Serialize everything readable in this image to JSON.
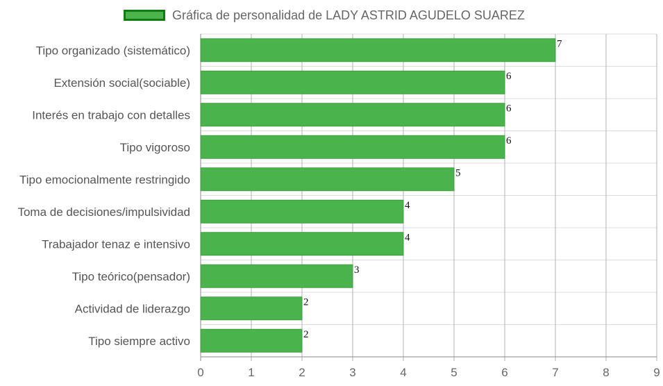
{
  "chart_data": {
    "type": "bar",
    "orientation": "horizontal",
    "legend": {
      "label": "Gráfica de personalidad de LADY ASTRID AGUDELO SUAREZ",
      "position": "top-center"
    },
    "categories": [
      "Tipo organizado (sistemático)",
      "Extensión social(sociable)",
      "Interés en trabajo con detalles",
      "Tipo vigoroso",
      "Tipo emocionalmente restringido",
      "Toma de decisiones/impulsividad",
      "Trabajador tenaz e intensivo",
      "Tipo teórico(pensador)",
      "Actividad de liderazgo",
      "Tipo siempre activo"
    ],
    "values": [
      7,
      6,
      6,
      6,
      5,
      4,
      4,
      3,
      2,
      2
    ],
    "xlim": [
      0,
      9
    ],
    "x_ticks": [
      "0",
      "1",
      "2",
      "3",
      "4",
      "5",
      "6",
      "7",
      "8",
      "9"
    ],
    "grid": true,
    "data_labels": true,
    "colors": {
      "bar": "#4bb34b",
      "legend_border": "#127a12",
      "grid": "#dddddd",
      "axis": "#888888"
    }
  }
}
